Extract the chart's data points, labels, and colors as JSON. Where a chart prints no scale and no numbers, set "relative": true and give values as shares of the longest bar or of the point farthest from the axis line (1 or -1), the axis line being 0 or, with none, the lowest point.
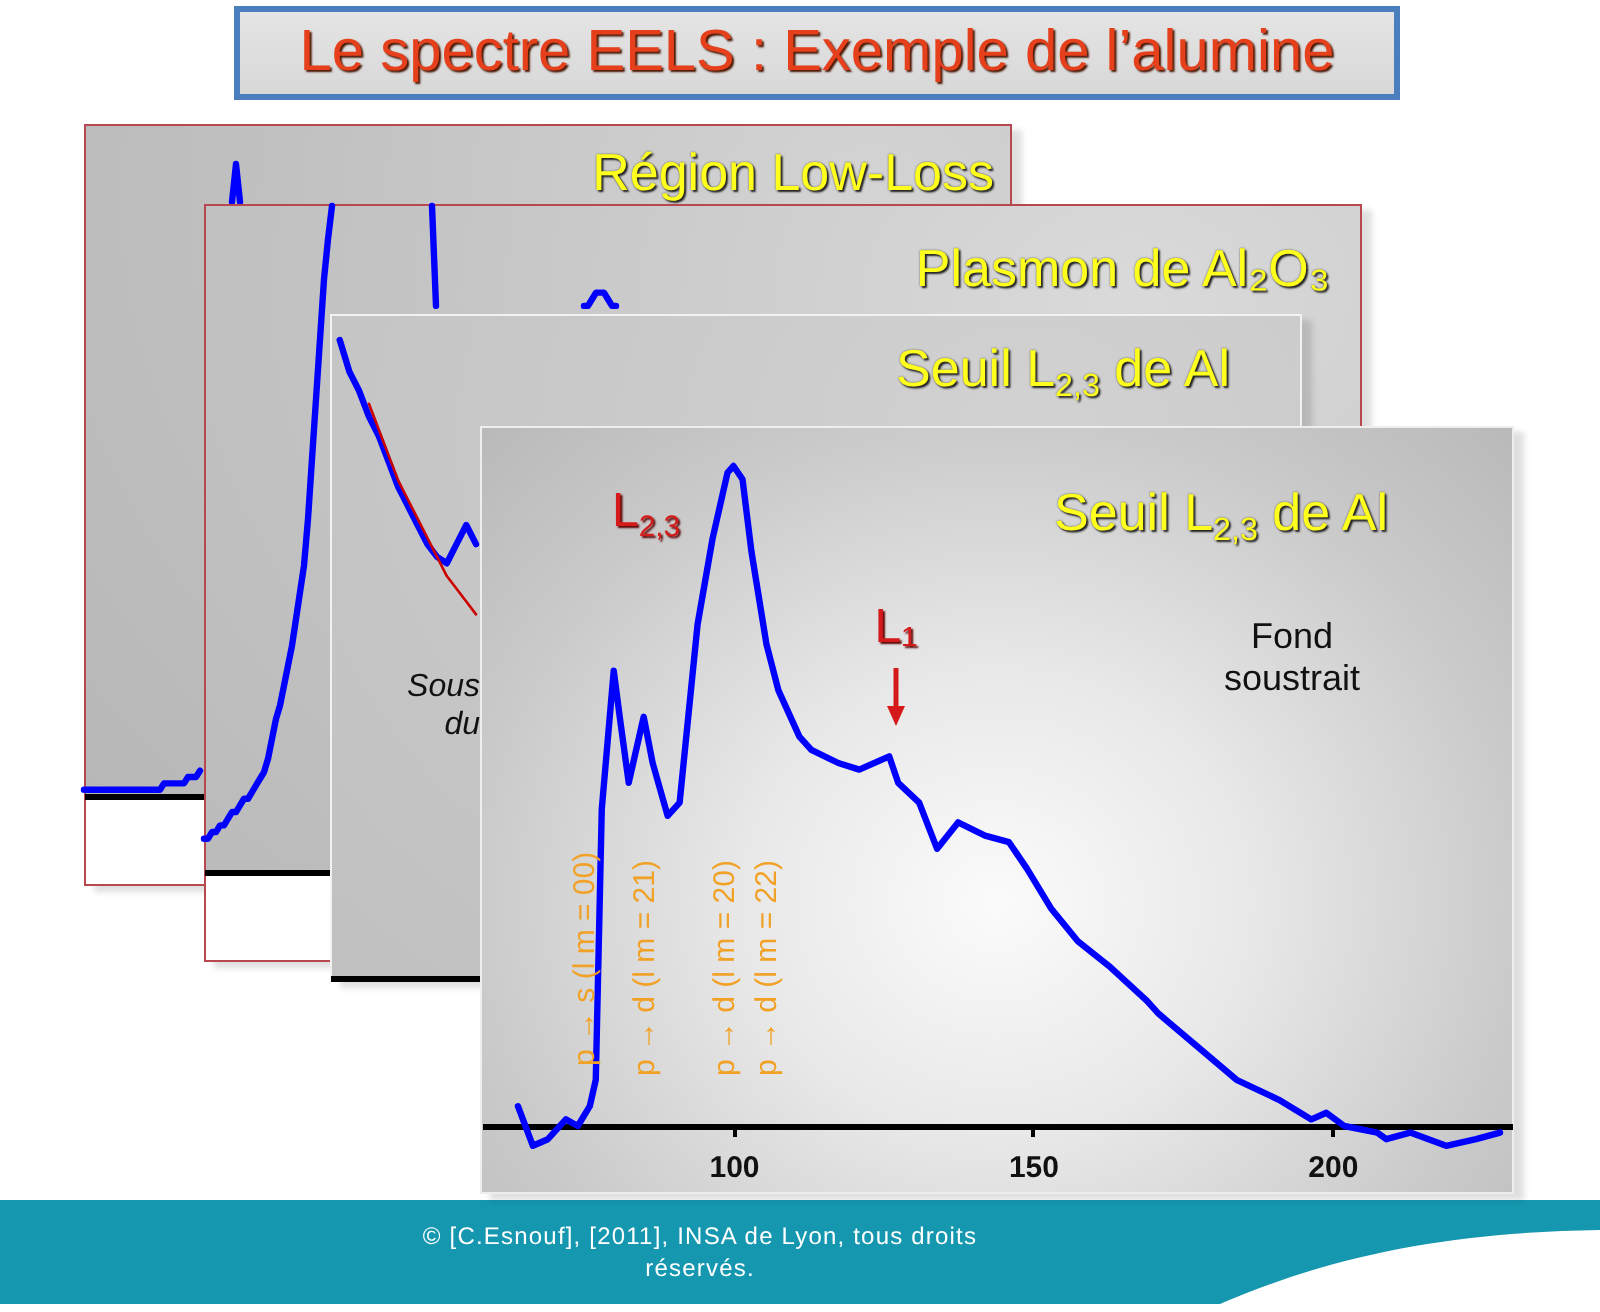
{
  "chart_data": [
    {
      "type": "other",
      "title": "Le spectre EELS : Exemple de l’alumine",
      "annotations": [
        "© [C.Esnouf], [2011], INSA de Lyon, tous droits réservés."
      ]
    },
    {
      "type": "line",
      "title": "Région Low-Loss",
      "relative": true,
      "categories": [
        null,
        null,
        null,
        null,
        null,
        null,
        null,
        null,
        null,
        null,
        null,
        null,
        null,
        null,
        null,
        null,
        null,
        null,
        null,
        null,
        null,
        null,
        null,
        null,
        null,
        null,
        null,
        null,
        null,
        null,
        null,
        null,
        null,
        null,
        null,
        null,
        null,
        null,
        null,
        null,
        null,
        null,
        null,
        null,
        null,
        null,
        null,
        null,
        null,
        null,
        null,
        null,
        null,
        null,
        null,
        null,
        null,
        null,
        null,
        null,
        null,
        null,
        null,
        null,
        null,
        null,
        null,
        null,
        null,
        null,
        null,
        null,
        null,
        null,
        null,
        null,
        null,
        null,
        null,
        null,
        null,
        null,
        null,
        null,
        null,
        null,
        null,
        null,
        null,
        null,
        null,
        null,
        null,
        null,
        null,
        null,
        null,
        null,
        null,
        null,
        null,
        null,
        null,
        null,
        null,
        null,
        null,
        null,
        null,
        null,
        null,
        null,
        null,
        null,
        null,
        null,
        null,
        null,
        null,
        null,
        null,
        null,
        null,
        null,
        null,
        null,
        null,
        null,
        null,
        null,
        null,
        null,
        null,
        null,
        null,
        null,
        null,
        null,
        null,
        null,
        null,
        null,
        null,
        null,
        null,
        null,
        null,
        null,
        null,
        null,
        null,
        null,
        null,
        null,
        null,
        null,
        null,
        null,
        null,
        null,
        null,
        null,
        null,
        null,
        null,
        null,
        null,
        null,
        null,
        null,
        null,
        null,
        null,
        null,
        null,
        null,
        null,
        null,
        null,
        null,
        null,
        null,
        null,
        null,
        null,
        null,
        null,
        null,
        null,
        null,
        null,
        null,
        null,
        null,
        null,
        null,
        null,
        null,
        null,
        null,
        null,
        null,
        null,
        null,
        null,
        null,
        null,
        null,
        null,
        null,
        null,
        null,
        null,
        null,
        null,
        null,
        null,
        null,
        null,
        null,
        null,
        null,
        null,
        null,
        null,
        null,
        null,
        null,
        null
      ],
      "series": [
        {
          "color": "#0000ff",
          "values": [
            0.01,
            0.01,
            0.01,
            0.01,
            0.01,
            0.01,
            0.01,
            0.01,
            0.01,
            0.01,
            0.01,
            0.01,
            0.01,
            0.01,
            0.01,
            0.01,
            0.01,
            0.01,
            0.01,
            0.01,
            0.02,
            0.02,
            0.02,
            0.02,
            0.02,
            0.02,
            0.03,
            0.03,
            0.03,
            0.04,
            null,
            null,
            null,
            null,
            null,
            null,
            null,
            null,
            null,
            null,
            null,
            null,
            null,
            null,
            null,
            null,
            null,
            null,
            null,
            null,
            null,
            null,
            null,
            null,
            null,
            null,
            null,
            null,
            null,
            null,
            null,
            null,
            null,
            null,
            null,
            null,
            null,
            null,
            null,
            null,
            null,
            null,
            null,
            null,
            null,
            null,
            null,
            null,
            null,
            null,
            null,
            null,
            null,
            null,
            null,
            null,
            null,
            null,
            null,
            null,
            null,
            null,
            null,
            null,
            null,
            null,
            null,
            null,
            null,
            null,
            null,
            null,
            null,
            null,
            null,
            null,
            null,
            null,
            null,
            null,
            null,
            null,
            null,
            null,
            null,
            null,
            null,
            null,
            null,
            null,
            null,
            null,
            null,
            null,
            null,
            null,
            null,
            null,
            null,
            null,
            null,
            null,
            null,
            null,
            null,
            null,
            null,
            null,
            null,
            null,
            null,
            null,
            null,
            null,
            null,
            null,
            null,
            null,
            null,
            null,
            null,
            null,
            null,
            null,
            null,
            null,
            null,
            null,
            null,
            null,
            null,
            null,
            null,
            null,
            null,
            null,
            null,
            null,
            null,
            null,
            null,
            null,
            null,
            null,
            null,
            null,
            null,
            null,
            null,
            null,
            null,
            null,
            null,
            null,
            null,
            null,
            null,
            null,
            null,
            null,
            null,
            null,
            null,
            null,
            null,
            null,
            null,
            null,
            null,
            null,
            null,
            null,
            null,
            null,
            null,
            null,
            null,
            null,
            null,
            null,
            null,
            null,
            null,
            null,
            null,
            null,
            null,
            null,
            null,
            null,
            null,
            null,
            null,
            null,
            null,
            null,
            null,
            null,
            null
          ]
        },
        {
          "color": "#0000ff",
          "values": [
            null,
            null,
            null,
            null,
            null,
            null,
            null,
            null,
            null,
            null,
            null,
            null,
            null,
            null,
            null,
            null,
            null,
            null,
            null,
            null,
            null,
            null,
            null,
            null,
            null,
            null,
            null,
            null,
            null,
            null,
            null,
            null,
            null,
            null,
            null,
            null,
            null,
            0.94,
            1,
            0.94,
            null,
            null,
            null,
            null,
            null,
            null,
            null,
            null,
            null,
            null,
            null,
            null,
            null,
            null,
            null,
            null,
            null,
            null,
            null,
            null,
            null,
            null,
            null,
            null,
            null,
            null,
            null,
            null,
            null,
            null,
            null,
            null,
            null,
            null,
            null,
            null,
            null,
            null,
            null,
            null,
            null,
            null,
            null,
            null,
            null,
            null,
            null,
            null,
            null,
            null,
            null,
            null,
            null,
            null,
            null,
            null,
            null,
            null,
            null,
            null,
            null,
            null,
            null,
            null,
            null,
            null,
            null,
            null,
            null,
            null,
            null,
            null,
            null,
            null,
            null,
            null,
            null,
            null,
            null,
            null,
            null,
            null,
            null,
            null,
            null,
            null,
            null,
            null,
            null,
            null,
            null,
            null,
            null,
            null,
            null,
            null,
            null,
            null,
            null,
            null,
            null,
            null,
            null,
            null,
            null,
            null,
            null,
            null,
            null,
            null,
            null,
            null,
            null,
            null,
            null,
            null,
            null,
            null,
            null,
            null,
            null,
            null,
            null,
            null,
            null,
            null,
            null,
            null,
            null,
            null,
            null,
            null,
            null,
            null,
            null,
            null,
            null,
            null,
            null,
            null,
            null,
            null,
            null,
            null,
            null,
            null,
            null,
            null,
            null,
            null,
            null,
            null,
            null,
            null,
            null,
            null,
            null,
            null,
            null,
            null,
            null,
            null,
            null,
            null,
            null,
            null,
            null,
            null,
            null,
            null,
            null,
            null,
            null,
            null,
            null,
            null,
            null,
            null,
            null,
            null,
            null,
            null,
            null,
            null,
            null,
            null,
            null,
            null,
            null
          ]
        }
      ]
    },
    {
      "type": "line",
      "title": "Plasmon de Al₂O₃",
      "relative": true,
      "categories": [
        null,
        null,
        null,
        null,
        null,
        null,
        null,
        null,
        null,
        null,
        null,
        null,
        null,
        null,
        null,
        null,
        null,
        null,
        null,
        null,
        null,
        null,
        null,
        null,
        null,
        null,
        null,
        null,
        null,
        null,
        null,
        null,
        null,
        null,
        null,
        null,
        null,
        null,
        null,
        null,
        null,
        null,
        null,
        null,
        null,
        null,
        null,
        null,
        null,
        null,
        null,
        null,
        null,
        null,
        null,
        null,
        null,
        null,
        null,
        null,
        null,
        null,
        null,
        null,
        null,
        null,
        null,
        null,
        null,
        null,
        null,
        null,
        null,
        null,
        null,
        null,
        null,
        null,
        null,
        null,
        null,
        null,
        null,
        null,
        null,
        null,
        null,
        null,
        null,
        null,
        null,
        null,
        null,
        null,
        null,
        null,
        null,
        null,
        null,
        null,
        null,
        null,
        null,
        null,
        null,
        null,
        null,
        null,
        null,
        null,
        null,
        null,
        null,
        null,
        null,
        null,
        null,
        null,
        null,
        null,
        null,
        null,
        null,
        null,
        null,
        null,
        null,
        null,
        null,
        null,
        null,
        null,
        null,
        null,
        null,
        null,
        null,
        null,
        null,
        null,
        null,
        null,
        null,
        null,
        null,
        null,
        null,
        null,
        null,
        null,
        null,
        null,
        null,
        null,
        null,
        null,
        null,
        null,
        null,
        null,
        null,
        null,
        null,
        null,
        null,
        null,
        null,
        null,
        null,
        null,
        null,
        null,
        null,
        null,
        null,
        null,
        null,
        null,
        null,
        null,
        null,
        null,
        null,
        null,
        null,
        null,
        null,
        null,
        null,
        null,
        null,
        null,
        null,
        null,
        null,
        null,
        null,
        null,
        null,
        null,
        null,
        null,
        null,
        null,
        null,
        null,
        null,
        null,
        null,
        null,
        null,
        null,
        null
      ],
      "series": [
        {
          "color": "#0000ff",
          "values": [
            0.05,
            0.05,
            0.06,
            0.06,
            0.07,
            0.07,
            0.08,
            0.09,
            0.09,
            0.1,
            0.11,
            0.11,
            0.12,
            0.13,
            0.14,
            0.15,
            0.17,
            0.2,
            0.23,
            0.25,
            0.28,
            0.31,
            0.34,
            0.38,
            0.42,
            0.46,
            0.53,
            0.62,
            0.71,
            0.8,
            0.89,
            0.95,
            1,
            null,
            null,
            null,
            null,
            null,
            null,
            null,
            null,
            null,
            null,
            null,
            null,
            null,
            null,
            null,
            null,
            null,
            null,
            null,
            null,
            null,
            null,
            null,
            null,
            null,
            null,
            null,
            null,
            null,
            null,
            null,
            null,
            null,
            null,
            null,
            null,
            null,
            null,
            null,
            null,
            null,
            null,
            null,
            null,
            null,
            null,
            null,
            null,
            null,
            null,
            null,
            null,
            null,
            null,
            null,
            null,
            null,
            null,
            null,
            null,
            null,
            null,
            null,
            null,
            null,
            null,
            null,
            null,
            null,
            null,
            null,
            null,
            null,
            null,
            null,
            null,
            null,
            null,
            null,
            null,
            null,
            null,
            null,
            null,
            null,
            null,
            null,
            null,
            null,
            null,
            null,
            null,
            null,
            null,
            null,
            null,
            null,
            null,
            null,
            null,
            null,
            null,
            null,
            null,
            null,
            null,
            null,
            null,
            null,
            null,
            null,
            null,
            null,
            null,
            null,
            null,
            null,
            null,
            null,
            null,
            null,
            null,
            null,
            null,
            null,
            null,
            null,
            null,
            null,
            null,
            null,
            null,
            null,
            null,
            null,
            null,
            null,
            null,
            null,
            null,
            null,
            null,
            null,
            null,
            null,
            null,
            null,
            null,
            null,
            null,
            null,
            null,
            null,
            null,
            null,
            null,
            null,
            null,
            null,
            null,
            null,
            null,
            null,
            null,
            null,
            null,
            null,
            null,
            null,
            null,
            null,
            null,
            null,
            null,
            null,
            null,
            null,
            null,
            null,
            null
          ]
        },
        {
          "color": "#0000ff",
          "values": [
            null,
            null,
            null,
            null,
            null,
            null,
            null,
            null,
            null,
            null,
            null,
            null,
            null,
            null,
            null,
            null,
            null,
            null,
            null,
            null,
            null,
            null,
            null,
            null,
            null,
            null,
            null,
            null,
            null,
            null,
            null,
            null,
            null,
            null,
            null,
            null,
            null,
            null,
            null,
            null,
            null,
            null,
            null,
            null,
            null,
            null,
            null,
            null,
            null,
            null,
            null,
            null,
            null,
            null,
            null,
            null,
            null,
            1,
            0.85,
            null,
            null,
            null,
            null,
            null,
            null,
            null,
            null,
            null,
            null,
            null,
            null,
            null,
            null,
            null,
            null,
            null,
            null,
            null,
            null,
            null,
            null,
            null,
            null,
            null,
            null,
            null,
            null,
            null,
            null,
            null,
            null,
            null,
            null,
            null,
            null,
            null,
            null,
            null,
            null,
            null,
            null,
            null,
            null,
            null,
            null,
            null,
            null,
            null,
            null,
            null,
            null,
            null,
            null,
            null,
            null,
            null,
            null,
            null,
            null,
            null,
            null,
            null,
            null,
            null,
            null,
            null,
            null,
            null,
            null,
            null,
            null,
            null,
            null,
            null,
            null,
            null,
            null,
            null,
            null,
            null,
            null,
            null,
            null,
            null,
            null,
            null,
            null,
            null,
            null,
            null,
            null,
            null,
            null,
            null,
            null,
            null,
            null,
            null,
            null,
            null,
            null,
            null,
            null,
            null,
            null,
            null,
            null,
            null,
            null,
            null,
            null,
            null,
            null,
            null,
            null,
            null,
            null,
            null,
            null,
            null,
            null,
            null,
            null,
            null,
            null,
            null,
            null,
            null,
            null,
            null,
            null,
            null,
            null,
            null,
            null,
            null,
            null,
            null,
            null,
            null,
            null,
            null,
            null,
            null,
            null,
            null,
            null,
            null,
            null,
            null,
            null,
            null,
            null
          ]
        },
        {
          "color": "#0000ff",
          "values": [
            null,
            null,
            null,
            null,
            null,
            null,
            null,
            null,
            null,
            null,
            null,
            null,
            null,
            null,
            null,
            null,
            null,
            null,
            null,
            null,
            null,
            null,
            null,
            null,
            null,
            null,
            null,
            null,
            null,
            null,
            null,
            null,
            null,
            null,
            null,
            null,
            null,
            null,
            null,
            null,
            null,
            null,
            null,
            null,
            null,
            null,
            null,
            null,
            null,
            null,
            null,
            null,
            null,
            null,
            null,
            null,
            null,
            null,
            null,
            null,
            null,
            null,
            null,
            null,
            null,
            null,
            null,
            null,
            null,
            null,
            null,
            null,
            null,
            null,
            null,
            null,
            null,
            null,
            null,
            null,
            null,
            null,
            null,
            null,
            null,
            null,
            null,
            null,
            null,
            null,
            null,
            null,
            null,
            null,
            null,
            0.85,
            0.85,
            0.86,
            0.87,
            0.87,
            0.87,
            0.86,
            0.85,
            0.85,
            null,
            null,
            null,
            null,
            null,
            null,
            null,
            null,
            null,
            null,
            null,
            null,
            null,
            null,
            null,
            null,
            null,
            null,
            null,
            null,
            null,
            null,
            null,
            null,
            null,
            null,
            null,
            null,
            null,
            null,
            null,
            null,
            null,
            null,
            null,
            null,
            null,
            null,
            null,
            null,
            null,
            null,
            null,
            null,
            null,
            null,
            null,
            null,
            null,
            null,
            null,
            null,
            null,
            null,
            null,
            null,
            null,
            null,
            null,
            null,
            null,
            null,
            null,
            null,
            null,
            null,
            null,
            null,
            null,
            null,
            null,
            null,
            null,
            null,
            null,
            null,
            null,
            null,
            null,
            null,
            null,
            null,
            null,
            null,
            null,
            null,
            null,
            null,
            null,
            null,
            null,
            null,
            null,
            null,
            null,
            null,
            null,
            null,
            null,
            null,
            null,
            null,
            null,
            null,
            null,
            null,
            null,
            null,
            null
          ]
        }
      ]
    },
    {
      "type": "line",
      "title": "Seuil L$_{2,3}$ de Al",
      "relative": true,
      "categories": [
        null,
        null,
        null,
        null,
        null,
        null,
        null,
        null,
        null,
        null,
        null,
        null,
        null,
        null,
        null,
        null,
        null,
        null,
        null,
        null,
        null,
        null,
        null,
        null,
        null,
        null,
        null,
        null,
        null,
        null,
        null,
        null,
        null,
        null,
        null,
        null,
        null,
        null,
        null,
        null,
        null,
        null,
        null,
        null,
        null,
        null,
        null,
        null,
        null,
        null,
        null,
        null,
        null,
        null,
        null,
        null,
        null,
        null,
        null,
        null,
        null,
        null,
        null,
        null,
        null,
        null,
        null,
        null,
        null,
        null,
        null,
        null,
        null,
        null,
        null,
        null,
        null,
        null,
        null,
        null,
        null,
        null,
        null,
        null,
        null,
        null,
        null,
        null,
        null,
        null,
        null
      ],
      "series": [
        {
          "color": "#0000ff",
          "values": [
            null,
            1,
            0.95,
            0.92,
            0.88,
            0.85,
            0.81,
            0.77,
            0.74,
            0.71,
            0.68,
            0.66,
            0.65,
            0.68,
            0.71,
            0.68,
            null,
            null,
            null,
            null,
            null,
            null,
            null,
            null,
            null,
            null,
            null,
            null,
            null,
            null,
            null,
            null,
            null,
            null,
            null,
            null,
            null,
            null,
            null,
            null,
            null,
            null,
            null,
            null,
            null,
            null,
            null,
            null,
            null,
            null,
            null,
            null,
            null,
            null,
            null,
            null,
            null,
            null,
            null,
            null,
            null,
            null,
            null,
            null,
            null,
            null,
            null,
            null,
            null,
            null,
            null,
            null,
            null,
            null,
            null,
            null,
            null,
            null,
            null,
            null,
            null,
            null,
            null,
            null,
            null,
            null,
            null,
            null,
            null,
            null,
            null
          ]
        },
        {
          "color": "#cc0000",
          "values": [
            null,
            null,
            null,
            null,
            0.9,
            0.86,
            0.82,
            0.78,
            0.75,
            0.72,
            0.69,
            0.66,
            0.63,
            0.61,
            0.59,
            0.57,
            null,
            null,
            null,
            null,
            null,
            null,
            null,
            null,
            null,
            null,
            null,
            null,
            null,
            null,
            null,
            null,
            null,
            null,
            null,
            null,
            null,
            null,
            null,
            null,
            null,
            null,
            null,
            null,
            null,
            null,
            null,
            null,
            null,
            null,
            null,
            null,
            null,
            null,
            null,
            null,
            null,
            null,
            null,
            null,
            null,
            null,
            null,
            null,
            null,
            null,
            null,
            null,
            null,
            null,
            null,
            null,
            null,
            null,
            null,
            null,
            null,
            null,
            null,
            null,
            null,
            null,
            null,
            null,
            null,
            null,
            null,
            null,
            null,
            null,
            null
          ]
        }
      ],
      "annotations": [
        "Sous du"
      ]
    },
    {
      "type": "line",
      "title": "Seuil L$_{2,3}$ de Al",
      "relative": true,
      "color": "#0000ff",
      "x": [
        64,
        66.5,
        69,
        72,
        74,
        76,
        77,
        78,
        80,
        81,
        82.5,
        85,
        86.5,
        89,
        91,
        94,
        96.5,
        99,
        100,
        101.5,
        103,
        105.5,
        107.5,
        111,
        113,
        117.5,
        121,
        126,
        127.5,
        131,
        134,
        137.5,
        142,
        146,
        149,
        153,
        157.5,
        163,
        169,
        171,
        177.5,
        184,
        191,
        196.5,
        199,
        202,
        207.5,
        209,
        213,
        219,
        224,
        228
      ],
      "values": [
        0.03,
        -0.03,
        -0.02,
        0.01,
        0,
        0.03,
        0.07,
        0.48,
        0.69,
        0.62,
        0.52,
        0.62,
        0.55,
        0.47,
        0.49,
        0.76,
        0.89,
        0.99,
        1,
        0.98,
        0.87,
        0.73,
        0.66,
        0.59,
        0.57,
        0.55,
        0.54,
        0.56,
        0.52,
        0.49,
        0.42,
        0.46,
        0.44,
        0.43,
        0.39,
        0.33,
        0.28,
        0.24,
        0.19,
        0.17,
        0.12,
        0.07,
        0.04,
        0.01,
        0.02,
        0,
        -0.01,
        -0.02,
        -0.01,
        -0.03,
        -0.02,
        -0.01
      ],
      "xlim": [
        58,
        230
      ],
      "xticks": [
        100,
        150,
        200
      ],
      "annotations": [
        "L$_{2,3}$",
        "L₁",
        "p → s (l m = 00)",
        "p → d (l m = 21)",
        "p → d (l m = 20)",
        "p → d (l m = 22)",
        "Fond soustrait"
      ]
    }
  ]
}
